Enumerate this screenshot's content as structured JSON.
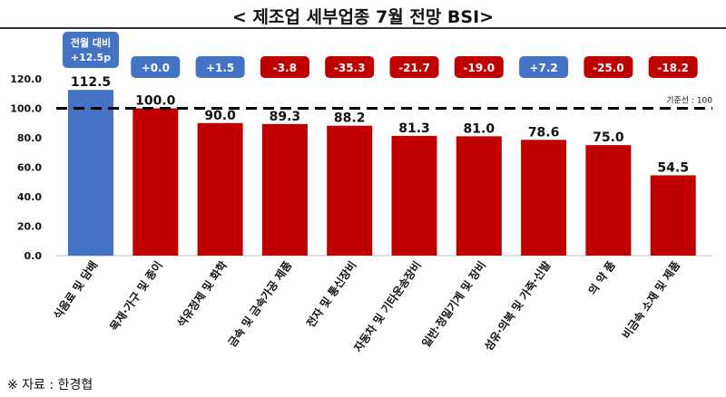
{
  "header": {
    "title": "< 제조업 세부업종 7월 전망 BSI>"
  },
  "footer": {
    "source": "※ 자료 : 한경협"
  },
  "colors": {
    "highlight_bar": "#4472C4",
    "bar": "#C00000",
    "positive_badge": "#4472C4",
    "negative_badge": "#C00000"
  },
  "chart_data": {
    "type": "bar",
    "categories": [
      "식음료 및 담배",
      "목재·가구 및 종이",
      "석유정제 및 화학",
      "금속 및 금속가공 제품",
      "전자 및 통신장비",
      "자동차 및 기타운송장비",
      "일반·정밀기계 및 장비",
      "섬유·의복 및 가죽·신발",
      "의 약 품",
      "비금속 소재 및 제품"
    ],
    "values": [
      112.5,
      100.0,
      90.0,
      89.3,
      88.2,
      81.3,
      81.0,
      78.6,
      75.0,
      54.5
    ],
    "value_labels": [
      "112.5",
      "100.0",
      "90.0",
      "89.3",
      "88.2",
      "81.3",
      "81.0",
      "78.6",
      "75.0",
      "54.5"
    ],
    "changes": [
      "+12.5p",
      "+0.0",
      "+1.5",
      "-3.8",
      "-35.3",
      "-21.7",
      "-19.0",
      "+7.2",
      "-25.0",
      "-18.2"
    ],
    "change_prefix_first": "전월 대비",
    "ylim": [
      0,
      120
    ],
    "yticks": [
      "0.0",
      "20.0",
      "40.0",
      "60.0",
      "80.0",
      "100.0",
      "120.0"
    ],
    "reference_line": {
      "value": 100,
      "label": "기준선 : 100"
    }
  }
}
